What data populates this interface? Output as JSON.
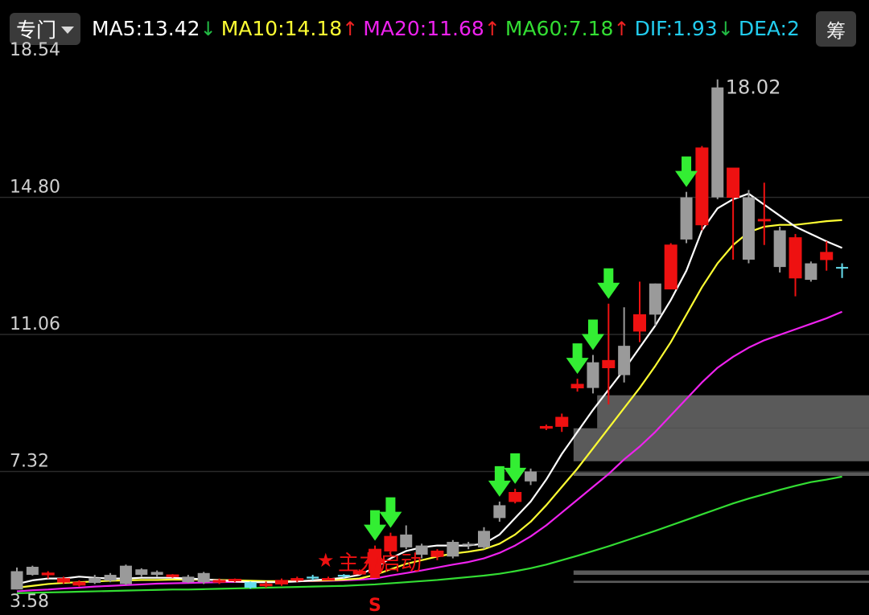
{
  "header": {
    "dropdown_label": "专门",
    "indicators": [
      {
        "name": "MA5",
        "value": "13.42",
        "trend": "down",
        "color": "#ffffff"
      },
      {
        "name": "MA10",
        "value": "14.18",
        "trend": "up",
        "color": "#ffff33"
      },
      {
        "name": "MA20",
        "value": "11.68",
        "trend": "up",
        "color": "#ee22ee"
      },
      {
        "name": "MA60",
        "value": "7.18",
        "trend": "up",
        "color": "#33dd33"
      },
      {
        "name": "DIF",
        "value": "1.93",
        "trend": "down",
        "color": "#22ccee"
      },
      {
        "name": "DEA",
        "value": "2",
        "trend": "",
        "color": "#22ccee"
      }
    ],
    "right_button_label": "筹"
  },
  "chart_data": {
    "type": "candlestick",
    "y_ticks": [
      "18.54",
      "14.80",
      "11.06",
      "7.32",
      "3.58"
    ],
    "ylim": [
      3.58,
      18.54
    ],
    "grid": true,
    "peak_label": "18.02",
    "annotation_text": "主力启动",
    "bottom_marker": "S",
    "colors": {
      "up": "#ee1111",
      "down": "#9a9a9a",
      "cross": "#66ddee",
      "ma5": "#ffffff",
      "ma10": "#ffff33",
      "ma20": "#ee22ee",
      "ma60": "#33dd33",
      "signal_arrow": "#33ee33",
      "start_marker": "#ee1111"
    },
    "candles": [
      [
        4.6,
        4.1,
        4.7,
        4.1,
        "down"
      ],
      [
        4.72,
        4.5,
        4.75,
        4.48,
        "down"
      ],
      [
        4.5,
        4.55,
        4.6,
        4.4,
        "up"
      ],
      [
        4.4,
        4.3,
        4.45,
        4.25,
        "up"
      ],
      [
        4.3,
        4.22,
        4.35,
        4.18,
        "up"
      ],
      [
        4.42,
        4.28,
        4.5,
        4.25,
        "down"
      ],
      [
        4.5,
        4.34,
        4.55,
        4.3,
        "down"
      ],
      [
        4.75,
        4.25,
        4.78,
        4.22,
        "down"
      ],
      [
        4.65,
        4.5,
        4.68,
        4.45,
        "down"
      ],
      [
        4.58,
        4.5,
        4.62,
        4.45,
        "down"
      ],
      [
        4.5,
        4.45,
        4.52,
        4.42,
        "up"
      ],
      [
        4.45,
        4.3,
        4.5,
        4.28,
        "down"
      ],
      [
        4.55,
        4.3,
        4.58,
        4.25,
        "down"
      ],
      [
        4.35,
        4.3,
        4.4,
        4.25,
        "up"
      ],
      [
        4.38,
        4.35,
        4.4,
        4.3,
        "up"
      ],
      [
        4.3,
        4.15,
        4.32,
        4.12,
        "cross"
      ],
      [
        4.25,
        4.2,
        4.32,
        4.15,
        "up"
      ],
      [
        4.35,
        4.25,
        4.4,
        4.2,
        "up"
      ],
      [
        4.4,
        4.35,
        4.45,
        4.3,
        "up"
      ],
      [
        4.45,
        4.4,
        4.5,
        4.35,
        "cross"
      ],
      [
        4.4,
        4.38,
        4.45,
        4.35,
        "up"
      ],
      [
        4.5,
        4.45,
        4.52,
        4.42,
        "cross"
      ],
      [
        4.6,
        4.52,
        4.65,
        4.5,
        "up"
      ],
      [
        4.55,
        5.2,
        5.3,
        4.5,
        "up"
      ],
      [
        5.15,
        5.55,
        5.65,
        5.1,
        "up"
      ],
      [
        5.6,
        5.25,
        5.85,
        5.2,
        "down"
      ],
      [
        5.3,
        5.05,
        5.35,
        4.95,
        "down"
      ],
      [
        5.0,
        5.15,
        5.2,
        4.9,
        "up"
      ],
      [
        5.4,
        5.0,
        5.45,
        4.95,
        "down"
      ],
      [
        5.35,
        5.3,
        5.4,
        5.2,
        "down"
      ],
      [
        5.7,
        5.25,
        5.8,
        5.2,
        "down"
      ],
      [
        6.4,
        6.05,
        6.5,
        5.95,
        "down"
      ],
      [
        6.75,
        6.5,
        6.85,
        6.45,
        "up"
      ],
      [
        7.32,
        7.05,
        7.4,
        6.95,
        "down"
      ],
      [
        8.5,
        8.55,
        8.6,
        8.45,
        "up"
      ],
      [
        8.55,
        8.8,
        8.9,
        8.4,
        "up"
      ],
      [
        9.7,
        9.6,
        9.85,
        9.5,
        "up"
      ],
      [
        10.3,
        9.6,
        10.5,
        9.45,
        "down"
      ],
      [
        10.35,
        10.15,
        11.9,
        9.15,
        "up"
      ],
      [
        10.75,
        9.95,
        11.8,
        9.75,
        "down"
      ],
      [
        11.6,
        11.15,
        12.5,
        10.85,
        "up"
      ],
      [
        12.45,
        11.6,
        12.45,
        11.3,
        "down"
      ],
      [
        12.3,
        13.5,
        13.55,
        12.3,
        "up"
      ],
      [
        14.8,
        13.65,
        14.95,
        13.55,
        "down"
      ],
      [
        14.05,
        16.15,
        16.2,
        13.9,
        "up"
      ],
      [
        17.8,
        14.8,
        18.02,
        14.75,
        "down"
      ],
      [
        14.8,
        15.6,
        15.6,
        13.1,
        "up"
      ],
      [
        14.8,
        13.1,
        15.0,
        13.0,
        "down"
      ],
      [
        14.2,
        14.2,
        15.2,
        13.5,
        "up"
      ],
      [
        13.9,
        12.9,
        14.0,
        12.75,
        "down"
      ],
      [
        12.6,
        13.7,
        13.8,
        12.1,
        "up"
      ],
      [
        13.0,
        12.55,
        13.05,
        12.5,
        "down"
      ],
      [
        13.1,
        13.3,
        13.6,
        12.8,
        "up"
      ],
      [
        12.9,
        12.9,
        13.0,
        12.6,
        "cross"
      ]
    ],
    "ma_lines": {
      "ma5": [
        4.25,
        4.35,
        4.4,
        4.4,
        4.45,
        4.42,
        4.4,
        4.4,
        4.42,
        4.42,
        4.42,
        4.4,
        4.38,
        4.35,
        4.32,
        4.3,
        4.3,
        4.3,
        4.32,
        4.35,
        4.38,
        4.42,
        4.5,
        4.7,
        4.95,
        5.15,
        5.25,
        5.3,
        5.3,
        5.3,
        5.35,
        5.6,
        6.05,
        6.5,
        7.1,
        7.8,
        8.4,
        9.0,
        9.55,
        10.1,
        10.7,
        11.3,
        12.0,
        12.8,
        13.9,
        14.5,
        14.75,
        14.9,
        14.6,
        14.3,
        14.0,
        13.8,
        13.6,
        13.42
      ],
      "ma10": [
        4.15,
        4.2,
        4.25,
        4.28,
        4.3,
        4.32,
        4.34,
        4.35,
        4.36,
        4.36,
        4.37,
        4.37,
        4.37,
        4.36,
        4.35,
        4.34,
        4.33,
        4.33,
        4.33,
        4.34,
        4.35,
        4.37,
        4.4,
        4.5,
        4.65,
        4.8,
        4.9,
        5.0,
        5.08,
        5.13,
        5.2,
        5.35,
        5.6,
        5.95,
        6.4,
        6.9,
        7.4,
        7.95,
        8.5,
        9.05,
        9.6,
        10.2,
        10.85,
        11.6,
        12.35,
        13.0,
        13.5,
        13.85,
        14.0,
        14.05,
        14.05,
        14.1,
        14.15,
        14.18
      ],
      "ma20": [
        4.05,
        4.08,
        4.1,
        4.13,
        4.15,
        4.18,
        4.2,
        4.22,
        4.24,
        4.26,
        4.27,
        4.28,
        4.29,
        4.3,
        4.31,
        4.31,
        4.32,
        4.32,
        4.33,
        4.33,
        4.34,
        4.35,
        4.37,
        4.4,
        4.48,
        4.55,
        4.62,
        4.7,
        4.78,
        4.85,
        4.95,
        5.1,
        5.3,
        5.55,
        5.85,
        6.2,
        6.55,
        6.9,
        7.25,
        7.65,
        8.0,
        8.4,
        8.85,
        9.3,
        9.75,
        10.15,
        10.45,
        10.7,
        10.9,
        11.05,
        11.2,
        11.35,
        11.5,
        11.68
      ],
      "ma60": [
        4.0,
        4.01,
        4.02,
        4.03,
        4.04,
        4.05,
        4.06,
        4.07,
        4.08,
        4.09,
        4.1,
        4.1,
        4.11,
        4.12,
        4.13,
        4.14,
        4.15,
        4.16,
        4.17,
        4.18,
        4.19,
        4.2,
        4.22,
        4.24,
        4.27,
        4.3,
        4.33,
        4.36,
        4.4,
        4.44,
        4.48,
        4.53,
        4.6,
        4.68,
        4.78,
        4.9,
        5.02,
        5.15,
        5.28,
        5.42,
        5.56,
        5.7,
        5.85,
        6.0,
        6.15,
        6.3,
        6.45,
        6.58,
        6.7,
        6.82,
        6.93,
        7.03,
        7.1,
        7.18
      ]
    },
    "signal_arrow_candles": [
      23,
      24,
      31,
      32,
      36,
      37,
      38,
      43
    ],
    "start_marker_candle": 23,
    "volume_profile": [
      {
        "price_low": 8.5,
        "price_high": 9.4,
        "strength": 0.92
      },
      {
        "price_low": 7.6,
        "price_high": 8.5,
        "strength": 1.0
      },
      {
        "price_low": 7.2,
        "price_high": 7.3,
        "strength": 1.0
      },
      {
        "price_low": 4.5,
        "price_high": 4.62,
        "strength": 1.0
      },
      {
        "price_low": 4.28,
        "price_high": 4.34,
        "strength": 1.0
      }
    ]
  }
}
